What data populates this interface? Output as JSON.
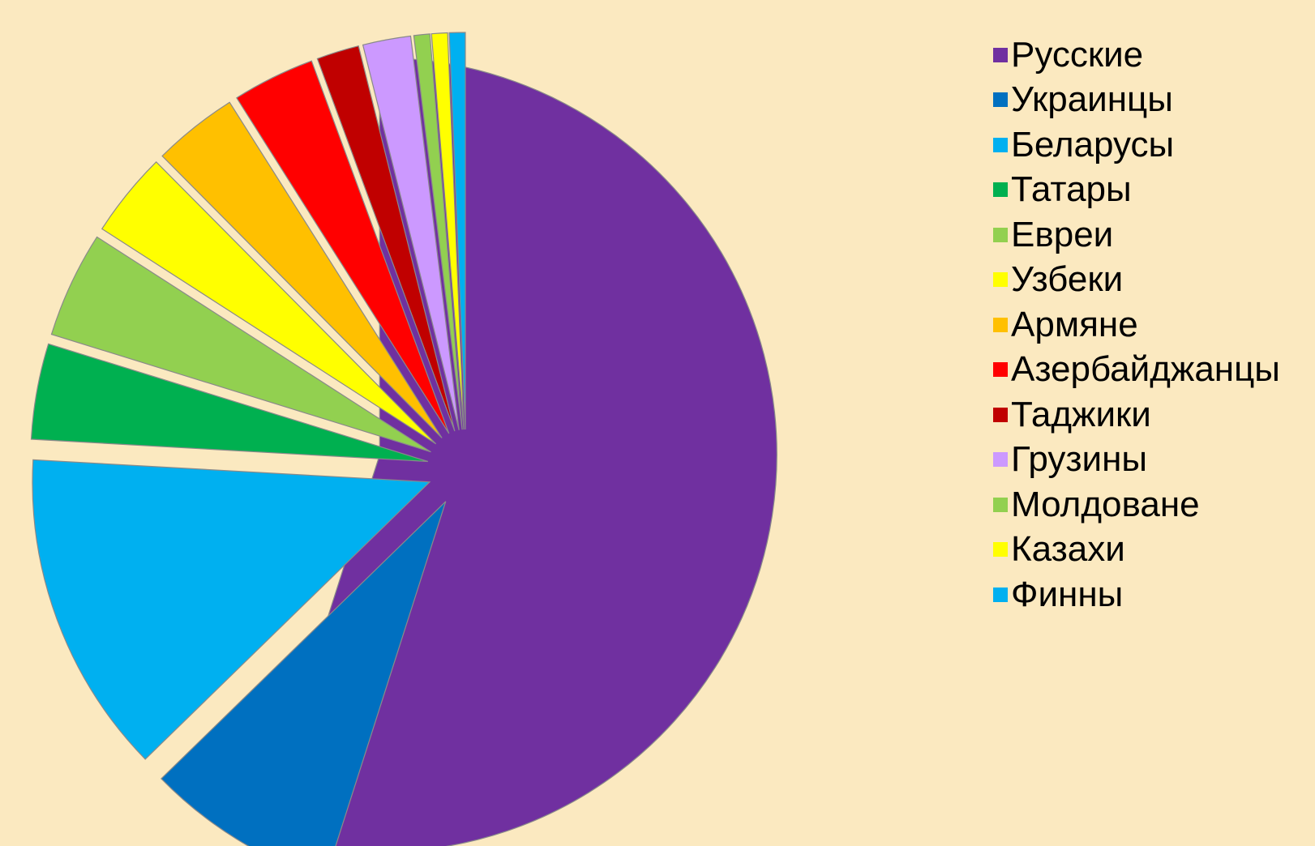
{
  "chart_data": {
    "type": "pie",
    "title": "",
    "labels": [
      "Русские",
      "Украинцы",
      "Беларусы",
      "Татары",
      "Евреи",
      "Узбеки",
      "Армяне",
      "Азербайджанцы",
      "Таджики",
      "Грузины",
      "Молдоване",
      "Казахи",
      "Финны"
    ],
    "values": [
      50.8,
      7.2,
      12.2,
      3.6,
      4.0,
      3.2,
      3.2,
      3.1,
      1.6,
      1.8,
      0.6,
      0.6,
      0.6
    ],
    "unit": "%",
    "colors": [
      "#7030a0",
      "#0070c0",
      "#00b0f0",
      "#00b050",
      "#92d050",
      "#ffff00",
      "#ffc000",
      "#ff0000",
      "#c00000",
      "#cc99ff",
      "#92d050",
      "#ffff00",
      "#00b0f0"
    ],
    "legend_position": "right",
    "exploded": true
  }
}
